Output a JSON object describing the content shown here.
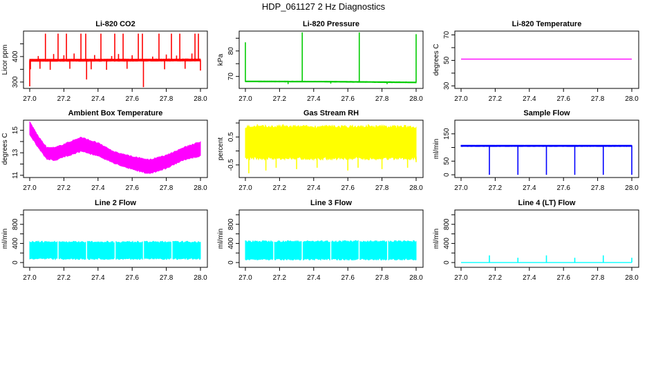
{
  "title": "HDP_061127  2 Hz Diagnostics",
  "chart_data": [
    {
      "type": "line",
      "title": "Li-820 CO2",
      "xlabel": "",
      "ylabel": "Licor ppm",
      "color": "#ff0000",
      "xlim": [
        27.0,
        28.0
      ],
      "xticks": [
        27.0,
        27.2,
        27.4,
        27.6,
        27.8,
        28.0
      ],
      "xtick_labels": [
        "27.0",
        "27.2",
        "27.4",
        "27.6",
        "27.8",
        "28.0"
      ],
      "ylim": [
        275,
        500
      ],
      "yticks": [
        300,
        350,
        400,
        450
      ],
      "ytick_labels": [
        "300",
        "",
        "400",
        ""
      ],
      "band": [
        [
          27.0,
          382,
          389
        ],
        [
          28.0,
          383,
          390
        ]
      ],
      "spikes": [
        [
          27.092,
          386,
          490
        ],
        [
          27.166,
          386,
          490
        ],
        [
          27.215,
          386,
          490
        ],
        [
          27.3,
          386,
          490
        ],
        [
          27.328,
          386,
          490
        ],
        [
          27.417,
          386,
          490
        ],
        [
          27.498,
          386,
          490
        ],
        [
          27.547,
          386,
          490
        ],
        [
          27.636,
          386,
          490
        ],
        [
          27.66,
          386,
          490
        ],
        [
          27.757,
          386,
          490
        ],
        [
          27.83,
          386,
          490
        ],
        [
          27.879,
          386,
          490
        ],
        [
          27.968,
          386,
          490
        ],
        [
          27.988,
          386,
          490
        ],
        [
          27.0,
          386,
          283
        ],
        [
          27.333,
          386,
          310
        ],
        [
          27.666,
          386,
          280
        ],
        [
          27.004,
          386,
          350
        ],
        [
          27.06,
          386,
          352
        ],
        [
          27.12,
          386,
          348
        ],
        [
          27.235,
          386,
          352
        ],
        [
          27.36,
          386,
          350
        ],
        [
          27.45,
          386,
          348
        ],
        [
          27.57,
          386,
          352
        ],
        [
          27.79,
          386,
          350
        ],
        [
          27.91,
          386,
          352
        ],
        [
          28.0,
          386,
          345
        ],
        [
          27.05,
          386,
          402
        ],
        [
          27.14,
          386,
          410
        ],
        [
          27.2,
          386,
          405
        ],
        [
          27.26,
          386,
          412
        ],
        [
          27.38,
          386,
          406
        ],
        [
          27.48,
          386,
          402
        ],
        [
          27.52,
          386,
          410
        ],
        [
          27.6,
          386,
          405
        ],
        [
          27.72,
          386,
          400
        ],
        [
          27.8,
          386,
          408
        ],
        [
          27.86,
          386,
          404
        ],
        [
          27.95,
          386,
          412
        ]
      ]
    },
    {
      "type": "line",
      "title": "Li-820 Pressure",
      "xlabel": "",
      "ylabel": "kPa",
      "color": "#00cc00",
      "xlim": [
        27.0,
        28.0
      ],
      "xticks": [
        27.0,
        27.2,
        27.4,
        27.6,
        27.8,
        28.0
      ],
      "xtick_labels": [
        "27.0",
        "27.2",
        "27.4",
        "27.6",
        "27.8",
        "28.0"
      ],
      "ylim": [
        65.3,
        87.8
      ],
      "yticks": [
        70,
        75,
        80,
        85
      ],
      "ytick_labels": [
        "70",
        "",
        "80",
        ""
      ],
      "band": [
        [
          27.0,
          67.9,
          68.2
        ],
        [
          27.5,
          67.8,
          68.1
        ],
        [
          28.0,
          67.5,
          67.8
        ]
      ],
      "spikes": [
        [
          27.0,
          68,
          83.4
        ],
        [
          27.333,
          68,
          87.3
        ],
        [
          27.667,
          68,
          87.3
        ],
        [
          28.0,
          67.6,
          86.6
        ],
        [
          27.25,
          68,
          67
        ],
        [
          27.5,
          68,
          67.2
        ],
        [
          27.83,
          67.7,
          67
        ]
      ]
    },
    {
      "type": "line",
      "title": "Li-820 Temperature",
      "xlabel": "",
      "ylabel": "degrees C",
      "color": "#ff00ff",
      "xlim": [
        27.0,
        28.0
      ],
      "xticks": [
        27.0,
        27.2,
        27.4,
        27.6,
        27.8,
        28.0
      ],
      "xtick_labels": [
        "27.0",
        "27.2",
        "27.4",
        "27.6",
        "27.8",
        "28.0"
      ],
      "ylim": [
        28,
        73
      ],
      "yticks": [
        30,
        40,
        50,
        60,
        70
      ],
      "ytick_labels": [
        "30",
        "",
        "50",
        "",
        "70"
      ],
      "line": [
        [
          27.0,
          51
        ],
        [
          28.0,
          51
        ]
      ]
    },
    {
      "type": "line",
      "title": "Ambient Box Temperature",
      "xlabel": "",
      "ylabel": "degrees C",
      "color": "#ff00ff",
      "xlim": [
        27.0,
        28.0
      ],
      "xticks": [
        27.0,
        27.2,
        27.4,
        27.6,
        27.8,
        28.0
      ],
      "xtick_labels": [
        "27.0",
        "27.2",
        "27.4",
        "27.6",
        "27.8",
        "28.0"
      ],
      "ylim": [
        10.8,
        15.9
      ],
      "yticks": [
        11,
        12,
        13,
        14,
        15
      ],
      "ytick_labels": [
        "11",
        "",
        "13",
        "",
        "15"
      ],
      "band": [
        [
          27.0,
          14.7,
          15.7
        ],
        [
          27.05,
          13.5,
          14.4
        ],
        [
          27.1,
          12.5,
          13.4
        ],
        [
          27.15,
          12.4,
          13.4
        ],
        [
          27.2,
          12.7,
          13.7
        ],
        [
          27.3,
          13.2,
          14.3
        ],
        [
          27.4,
          12.8,
          13.8
        ],
        [
          27.5,
          12.1,
          13.0
        ],
        [
          27.6,
          11.6,
          12.6
        ],
        [
          27.7,
          11.2,
          12.3
        ],
        [
          27.8,
          11.7,
          12.7
        ],
        [
          27.9,
          12.4,
          13.4
        ],
        [
          28.0,
          12.8,
          13.9
        ]
      ]
    },
    {
      "type": "line",
      "title": "Gas Stream RH",
      "xlabel": "",
      "ylabel": "percent",
      "color": "#ffff00",
      "xlim": [
        27.0,
        28.0
      ],
      "xticks": [
        27.0,
        27.2,
        27.4,
        27.6,
        27.8,
        28.0
      ],
      "xtick_labels": [
        "27.0",
        "27.2",
        "27.4",
        "27.6",
        "27.8",
        "28.0"
      ],
      "ylim": [
        -0.95,
        1.1
      ],
      "yticks": [
        -0.5,
        0,
        0.5,
        1.0
      ],
      "ytick_labels": [
        "-0.5",
        "",
        "0.5",
        ""
      ],
      "band": [
        [
          27.0,
          -0.2,
          0.8
        ],
        [
          28.0,
          -0.2,
          0.8
        ]
      ],
      "spikes": [
        [
          27.02,
          -0.2,
          -0.8
        ],
        [
          27.07,
          0.8,
          0.95
        ],
        [
          27.12,
          -0.2,
          -0.7
        ],
        [
          27.18,
          -0.2,
          -0.6
        ],
        [
          27.22,
          0.8,
          0.95
        ],
        [
          27.3,
          -0.2,
          -0.65
        ],
        [
          27.35,
          0.8,
          0.9
        ],
        [
          27.42,
          -0.2,
          -0.6
        ],
        [
          27.52,
          0.8,
          0.92
        ],
        [
          27.6,
          -0.2,
          -0.7
        ],
        [
          27.66,
          -0.2,
          -0.6
        ],
        [
          27.72,
          0.8,
          0.95
        ],
        [
          27.8,
          -0.2,
          -0.65
        ],
        [
          27.88,
          0.8,
          0.9
        ],
        [
          27.95,
          -0.2,
          -0.6
        ],
        [
          28.0,
          -0.2,
          -0.4
        ]
      ]
    },
    {
      "type": "line",
      "title": "Sample Flow",
      "xlabel": "",
      "ylabel": "ml/min",
      "color": "#0000ff",
      "xlim": [
        27.0,
        28.0
      ],
      "xticks": [
        27.0,
        27.2,
        27.4,
        27.6,
        27.8,
        28.0
      ],
      "xtick_labels": [
        "27.0",
        "27.2",
        "27.4",
        "27.6",
        "27.8",
        "28.0"
      ],
      "ylim": [
        -10,
        200
      ],
      "yticks": [
        0,
        50,
        100,
        150
      ],
      "ytick_labels": [
        "0",
        "50",
        "",
        "150"
      ],
      "band": [
        [
          27.0,
          104,
          108
        ],
        [
          28.0,
          104,
          108
        ]
      ],
      "spikes": [
        [
          27.166,
          106,
          0
        ],
        [
          27.333,
          106,
          0
        ],
        [
          27.5,
          106,
          0
        ],
        [
          27.666,
          106,
          0
        ],
        [
          27.833,
          106,
          0
        ],
        [
          28.0,
          106,
          0
        ]
      ]
    },
    {
      "type": "line",
      "title": "Line 2 Flow",
      "xlabel": "",
      "ylabel": "ml/min",
      "color": "#00ffff",
      "xlim": [
        27.0,
        28.0
      ],
      "xticks": [
        27.0,
        27.2,
        27.4,
        27.6,
        27.8,
        28.0
      ],
      "xtick_labels": [
        "27.0",
        "27.2",
        "27.4",
        "27.6",
        "27.8",
        "28.0"
      ],
      "ylim": [
        -100,
        1100
      ],
      "yticks": [
        0,
        200,
        400,
        600,
        800,
        1000
      ],
      "ytick_labels": [
        "0",
        "",
        "400",
        "",
        "800",
        ""
      ],
      "band": [
        [
          27.0,
          100,
          410
        ],
        [
          28.0,
          100,
          410
        ]
      ],
      "gaps": [
        27.166,
        27.333,
        27.5,
        27.666,
        27.833
      ]
    },
    {
      "type": "line",
      "title": "Line 3 Flow",
      "xlabel": "",
      "ylabel": "ml/min",
      "color": "#00ffff",
      "xlim": [
        27.0,
        28.0
      ],
      "xticks": [
        27.0,
        27.2,
        27.4,
        27.6,
        27.8,
        28.0
      ],
      "xtick_labels": [
        "27.0",
        "27.2",
        "27.4",
        "27.6",
        "27.8",
        "28.0"
      ],
      "ylim": [
        -100,
        1100
      ],
      "yticks": [
        0,
        200,
        400,
        600,
        800,
        1000
      ],
      "ytick_labels": [
        "0",
        "",
        "400",
        "",
        "800",
        ""
      ],
      "band": [
        [
          27.0,
          90,
          420
        ],
        [
          28.0,
          90,
          420
        ]
      ],
      "gaps": [
        27.166,
        27.333,
        27.5,
        27.666,
        27.833
      ]
    },
    {
      "type": "line",
      "title": "Line 4 (LT) Flow",
      "xlabel": "",
      "ylabel": "ml/min",
      "color": "#00ffff",
      "xlim": [
        27.0,
        28.0
      ],
      "xticks": [
        27.0,
        27.2,
        27.4,
        27.6,
        27.8,
        28.0
      ],
      "xtick_labels": [
        "27.0",
        "27.2",
        "27.4",
        "27.6",
        "27.8",
        "28.0"
      ],
      "ylim": [
        -100,
        1100
      ],
      "yticks": [
        0,
        200,
        400,
        600,
        800,
        1000
      ],
      "ytick_labels": [
        "0",
        "",
        "400",
        "",
        "800",
        ""
      ],
      "line": [
        [
          27.0,
          0
        ],
        [
          28.0,
          0
        ]
      ],
      "spikes": [
        [
          27.166,
          0,
          150
        ],
        [
          27.333,
          0,
          100
        ],
        [
          27.5,
          0,
          150
        ],
        [
          27.666,
          0,
          100
        ],
        [
          27.833,
          0,
          150
        ],
        [
          28.0,
          0,
          100
        ]
      ]
    }
  ]
}
